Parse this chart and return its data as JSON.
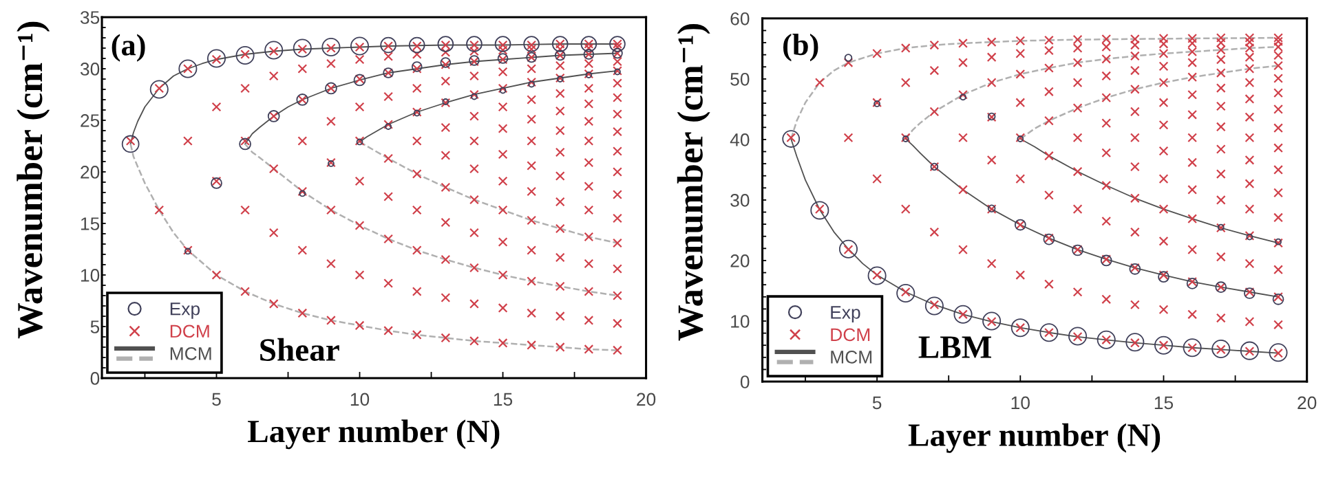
{
  "chart_data": [
    {
      "type": "scatter",
      "xlabel": "Layer number (N)",
      "ylabel": "Wavenumber (cm⁻¹)",
      "annotations": [
        "(a)",
        "Shear"
      ],
      "legend": "bottom left",
      "xlim": [
        1,
        20
      ],
      "xticks": [
        {
          "value": 2.5,
          "label": null
        },
        5,
        {
          "value": 7.5,
          "label": null
        },
        10,
        {
          "value": 12.5,
          "label": null
        },
        15,
        {
          "value": 17.5,
          "label": null
        },
        20
      ],
      "ylim": [
        0,
        35
      ],
      "yticks": [
        0,
        {
          "value": 1,
          "label": null
        },
        {
          "value": 2,
          "label": null
        },
        {
          "value": 3,
          "label": null
        },
        {
          "value": 4,
          "label": null
        },
        5,
        {
          "value": 6,
          "label": null
        },
        {
          "value": 7,
          "label": null
        },
        {
          "value": 8,
          "label": null
        },
        {
          "value": 9,
          "label": null
        },
        10,
        {
          "value": 11,
          "label": null
        },
        {
          "value": 12,
          "label": null
        },
        {
          "value": 13,
          "label": null
        },
        {
          "value": 14,
          "label": null
        },
        15,
        {
          "value": 16,
          "label": null
        },
        {
          "value": 17,
          "label": null
        },
        {
          "value": 18,
          "label": null
        },
        {
          "value": 19,
          "label": null
        },
        20,
        {
          "value": 21,
          "label": null
        },
        {
          "value": 22,
          "label": null
        },
        {
          "value": 23,
          "label": null
        },
        {
          "value": 24,
          "label": null
        },
        25,
        {
          "value": 26,
          "label": null
        },
        {
          "value": 27,
          "label": null
        },
        {
          "value": 28,
          "label": null
        },
        {
          "value": 29,
          "label": null
        },
        30,
        {
          "value": 31,
          "label": null
        },
        {
          "value": 32,
          "label": null
        },
        {
          "value": 33,
          "label": null
        },
        {
          "value": 34,
          "label": null
        },
        35
      ],
      "series": [
        {
          "name": "Exp",
          "type": "bubble",
          "marker": "circle",
          "color": "#40405a",
          "x": [
            2,
            3,
            4,
            5,
            6,
            7,
            8,
            9,
            10,
            11,
            12,
            13,
            14,
            15,
            16,
            17,
            18,
            19,
            6,
            7,
            8,
            9,
            10,
            11,
            12,
            13,
            14,
            15,
            16,
            17,
            18,
            19,
            9,
            10,
            11,
            12,
            13,
            14,
            15,
            16,
            17,
            18,
            19,
            4,
            5,
            8
          ],
          "values": [
            22.7,
            28.0,
            30.0,
            31.0,
            31.3,
            31.8,
            32.0,
            32.1,
            32.2,
            32.3,
            32.3,
            32.4,
            32.4,
            32.4,
            32.4,
            32.4,
            32.4,
            32.4,
            22.7,
            25.4,
            27.0,
            28.1,
            28.9,
            29.6,
            30.2,
            30.6,
            30.8,
            31.0,
            31.1,
            31.3,
            31.4,
            31.5,
            20.8,
            22.9,
            24.4,
            25.7,
            26.8,
            27.3,
            27.9,
            28.5,
            29.0,
            29.4,
            29.7,
            12.3,
            18.9,
            17.9
          ],
          "sizes": [
            0.9,
            1,
            1,
            1,
            1,
            1,
            1,
            1,
            1,
            0.75,
            0.75,
            0.75,
            0.75,
            0.75,
            0.75,
            0.75,
            0.75,
            0.75,
            0.4,
            0.4,
            0.4,
            0.4,
            0.4,
            0.3,
            0.3,
            0.3,
            0.3,
            0.3,
            0.3,
            0.3,
            0.3,
            0.3,
            0.1,
            0.1,
            0.1,
            0.1,
            0.1,
            0.1,
            0.1,
            0.1,
            0.1,
            0.1,
            0.1,
            0.1,
            0.35,
            0.1
          ]
        },
        {
          "name": "DCM",
          "marker": "cross",
          "color": "#d0404a",
          "x": [
            2,
            3,
            3,
            4,
            4,
            4,
            5,
            5,
            5,
            5,
            6,
            6,
            6,
            6,
            6,
            7,
            7,
            7,
            7,
            7,
            7,
            8,
            8,
            8,
            8,
            8,
            8,
            8,
            9,
            9,
            9,
            9,
            9,
            9,
            9,
            9,
            10,
            10,
            10,
            10,
            10,
            10,
            10,
            10,
            10,
            11,
            11,
            11,
            11,
            11,
            11,
            11,
            11,
            11,
            11,
            12,
            12,
            12,
            12,
            12,
            12,
            12,
            12,
            12,
            12,
            12,
            13,
            13,
            13,
            13,
            13,
            13,
            13,
            13,
            13,
            13,
            13,
            13,
            14,
            14,
            14,
            14,
            14,
            14,
            14,
            14,
            14,
            14,
            14,
            14,
            14,
            15,
            15,
            15,
            15,
            15,
            15,
            15,
            15,
            15,
            15,
            15,
            15,
            15,
            15,
            16,
            16,
            16,
            16,
            16,
            16,
            16,
            16,
            16,
            16,
            16,
            16,
            16,
            16,
            16,
            17,
            17,
            17,
            17,
            17,
            17,
            17,
            17,
            17,
            17,
            17,
            17,
            17,
            17,
            17,
            17,
            18,
            18,
            18,
            18,
            18,
            18,
            18,
            18,
            18,
            18,
            18,
            18,
            18,
            18,
            18,
            18,
            18,
            19,
            19,
            19,
            19,
            19,
            19,
            19,
            19,
            19,
            19,
            19,
            19,
            19,
            19,
            19,
            19,
            19,
            19
          ],
          "values": [
            23.0,
            16.3,
            28.1,
            12.4,
            23.0,
            30.0,
            10.0,
            19.1,
            26.3,
            30.9,
            8.4,
            16.3,
            23.0,
            28.1,
            31.4,
            7.2,
            14.1,
            20.3,
            25.4,
            29.3,
            31.7,
            6.3,
            12.4,
            18.1,
            23.0,
            27.0,
            30.0,
            31.9,
            5.6,
            11.1,
            16.3,
            20.9,
            24.9,
            28.1,
            30.5,
            32.0,
            5.1,
            10.0,
            14.8,
            19.1,
            23.0,
            26.3,
            29.0,
            30.9,
            32.1,
            4.6,
            9.2,
            13.5,
            17.6,
            21.3,
            24.6,
            27.3,
            29.6,
            31.2,
            32.2,
            4.2,
            8.4,
            12.4,
            16.3,
            19.8,
            23.0,
            25.8,
            28.1,
            30.0,
            31.4,
            32.2,
            3.9,
            7.8,
            11.5,
            15.1,
            18.5,
            21.6,
            24.3,
            26.7,
            28.8,
            30.4,
            31.6,
            32.3,
            3.6,
            7.2,
            10.7,
            14.1,
            17.3,
            20.3,
            23.0,
            25.4,
            27.5,
            29.3,
            30.7,
            31.7,
            32.3,
            3.4,
            6.8,
            10.0,
            13.2,
            16.3,
            19.1,
            21.7,
            24.2,
            26.3,
            28.1,
            29.7,
            30.9,
            31.8,
            32.3,
            3.2,
            6.3,
            9.4,
            12.4,
            15.3,
            18.1,
            20.6,
            23.0,
            25.1,
            27.0,
            28.7,
            30.0,
            31.1,
            31.9,
            32.3,
            3.0,
            6.0,
            8.9,
            11.7,
            14.5,
            17.1,
            19.6,
            21.9,
            24.0,
            25.9,
            27.6,
            29.1,
            30.3,
            31.3,
            31.9,
            32.4,
            2.8,
            5.6,
            8.4,
            11.1,
            13.7,
            16.3,
            18.6,
            20.9,
            23.0,
            24.9,
            26.6,
            28.1,
            29.5,
            30.5,
            31.4,
            32.0,
            32.4,
            2.7,
            5.3,
            8.0,
            10.6,
            13.1,
            15.5,
            17.8,
            20.0,
            22.0,
            23.9,
            25.6,
            27.2,
            28.6,
            29.8,
            30.7,
            31.5,
            32.1,
            32.4
          ]
        },
        {
          "name": "MCM",
          "type": "line",
          "line_style": "solid",
          "color": "#505050",
          "x": [
            2,
            2.1,
            2.25,
            2.5,
            3,
            3.5,
            4,
            4.5,
            5,
            6,
            7,
            8,
            9,
            10,
            11,
            13,
            15,
            17,
            19,
            null,
            6,
            6.25,
            6.5,
            7,
            7.5,
            8,
            9,
            10,
            11,
            12,
            13,
            14,
            15,
            16,
            17,
            18,
            19,
            null,
            10,
            10.25,
            10.5,
            11,
            12,
            13,
            14,
            15,
            16,
            17,
            18,
            19
          ],
          "values": [
            22.7,
            23.8,
            24.9,
            26.3,
            28.1,
            29.3,
            30.0,
            30.5,
            30.9,
            31.4,
            31.7,
            31.9,
            32.0,
            32.1,
            32.2,
            32.3,
            32.3,
            32.4,
            32.4,
            null,
            22.7,
            23.7,
            24.3,
            25.4,
            26.3,
            27.0,
            28.1,
            28.9,
            29.6,
            30.0,
            30.4,
            30.7,
            30.9,
            31.1,
            31.3,
            31.4,
            31.5,
            null,
            22.9,
            23.4,
            23.8,
            24.6,
            25.8,
            26.7,
            27.5,
            28.1,
            28.7,
            29.1,
            29.5,
            29.8
          ]
        },
        {
          "type": "line",
          "line_style": "dashed",
          "color": "#b0b0b0",
          "x": [
            2,
            2.1,
            2.25,
            2.5,
            3,
            3.5,
            4,
            5,
            6,
            7,
            8,
            9,
            10,
            11,
            12,
            13,
            14,
            15,
            16,
            17,
            18,
            19,
            null,
            6,
            6.25,
            6.5,
            7,
            8,
            9,
            10,
            11,
            12,
            13,
            14,
            15,
            16,
            17,
            18,
            19,
            null,
            10,
            10.5,
            11,
            12,
            13,
            14,
            15,
            16,
            17,
            18,
            19
          ],
          "values": [
            22.7,
            21.5,
            20.5,
            18.9,
            16.3,
            14.1,
            12.4,
            10.0,
            8.4,
            7.2,
            6.3,
            5.6,
            5.1,
            4.6,
            4.2,
            3.9,
            3.6,
            3.4,
            3.2,
            3.0,
            2.8,
            2.7,
            null,
            22.7,
            21.9,
            21.4,
            20.3,
            18.1,
            16.3,
            14.8,
            13.5,
            12.4,
            11.5,
            10.7,
            10.0,
            9.4,
            8.9,
            8.4,
            8.0,
            null,
            22.9,
            22.1,
            21.3,
            19.8,
            18.5,
            17.3,
            16.3,
            15.3,
            14.5,
            13.7,
            13.1
          ]
        }
      ]
    },
    {
      "type": "scatter",
      "xlabel": "Layer number (N)",
      "ylabel": "Wavenumber (cm⁻¹)",
      "annotations": [
        "(b)",
        "LBM"
      ],
      "legend": "bottom left",
      "xlim": [
        1,
        20
      ],
      "xticks": [
        {
          "value": 2.5,
          "label": null
        },
        5,
        {
          "value": 7.5,
          "label": null
        },
        10,
        {
          "value": 12.5,
          "label": null
        },
        15,
        {
          "value": 17.5,
          "label": null
        },
        20
      ],
      "ylim": [
        0,
        60
      ],
      "yticks": [
        0,
        {
          "value": 2,
          "label": null
        },
        {
          "value": 4,
          "label": null
        },
        {
          "value": 6,
          "label": null
        },
        {
          "value": 8,
          "label": null
        },
        10,
        {
          "value": 12,
          "label": null
        },
        {
          "value": 14,
          "label": null
        },
        {
          "value": 16,
          "label": null
        },
        {
          "value": 18,
          "label": null
        },
        20,
        {
          "value": 22,
          "label": null
        },
        {
          "value": 24,
          "label": null
        },
        {
          "value": 26,
          "label": null
        },
        {
          "value": 28,
          "label": null
        },
        30,
        {
          "value": 32,
          "label": null
        },
        {
          "value": 34,
          "label": null
        },
        {
          "value": 36,
          "label": null
        },
        {
          "value": 38,
          "label": null
        },
        40,
        {
          "value": 42,
          "label": null
        },
        {
          "value": 44,
          "label": null
        },
        {
          "value": 46,
          "label": null
        },
        {
          "value": 48,
          "label": null
        },
        50,
        {
          "value": 52,
          "label": null
        },
        {
          "value": 54,
          "label": null
        },
        {
          "value": 56,
          "label": null
        },
        {
          "value": 58,
          "label": null
        },
        60
      ],
      "series": [
        {
          "name": "Exp",
          "type": "bubble",
          "marker": "circle",
          "color": "#40405a",
          "x": [
            2,
            3,
            4,
            5,
            6,
            7,
            8,
            9,
            10,
            11,
            12,
            13,
            14,
            15,
            16,
            17,
            18,
            19,
            6,
            7,
            9,
            10,
            11,
            12,
            13,
            14,
            15,
            16,
            17,
            18,
            19,
            10,
            17,
            18,
            19,
            4,
            5,
            8,
            9
          ],
          "values": [
            40.1,
            28.3,
            21.9,
            17.5,
            14.6,
            12.5,
            11.1,
            10.0,
            8.9,
            8.1,
            7.5,
            6.9,
            6.5,
            6.0,
            5.6,
            5.4,
            5.1,
            4.8,
            40.1,
            35.5,
            28.6,
            25.9,
            23.5,
            21.7,
            20.0,
            18.6,
            17.3,
            16.2,
            15.6,
            14.6,
            13.6,
            40.1,
            25.5,
            23.9,
            23.1,
            53.5,
            45.9,
            47.0,
            43.8
          ],
          "sizes": [
            0.9,
            1,
            1,
            1,
            1,
            1,
            1,
            1,
            1,
            1,
            1,
            1,
            1,
            1,
            1,
            1,
            1,
            1,
            0.1,
            0.15,
            0.15,
            0.35,
            0.35,
            0.35,
            0.35,
            0.35,
            0.35,
            0.35,
            0.35,
            0.35,
            0.35,
            0.1,
            0.1,
            0.1,
            0.1,
            0.15,
            0.1,
            0.1,
            0.15
          ]
        },
        {
          "name": "DCM",
          "marker": "cross",
          "color": "#d0404a",
          "x": [
            2,
            3,
            3,
            4,
            4,
            4,
            5,
            5,
            5,
            5,
            6,
            6,
            6,
            6,
            6,
            7,
            7,
            7,
            7,
            7,
            7,
            8,
            8,
            8,
            8,
            8,
            8,
            8,
            9,
            9,
            9,
            9,
            9,
            9,
            9,
            9,
            10,
            10,
            10,
            10,
            10,
            10,
            10,
            10,
            10,
            11,
            11,
            11,
            11,
            11,
            11,
            11,
            11,
            11,
            11,
            12,
            12,
            12,
            12,
            12,
            12,
            12,
            12,
            12,
            12,
            12,
            13,
            13,
            13,
            13,
            13,
            13,
            13,
            13,
            13,
            13,
            13,
            13,
            14,
            14,
            14,
            14,
            14,
            14,
            14,
            14,
            14,
            14,
            14,
            14,
            14,
            15,
            15,
            15,
            15,
            15,
            15,
            15,
            15,
            15,
            15,
            15,
            15,
            15,
            15,
            16,
            16,
            16,
            16,
            16,
            16,
            16,
            16,
            16,
            16,
            16,
            16,
            16,
            16,
            16,
            17,
            17,
            17,
            17,
            17,
            17,
            17,
            17,
            17,
            17,
            17,
            17,
            17,
            17,
            17,
            17,
            18,
            18,
            18,
            18,
            18,
            18,
            18,
            18,
            18,
            18,
            18,
            18,
            18,
            18,
            18,
            18,
            18,
            19,
            19,
            19,
            19,
            19,
            19,
            19,
            19,
            19,
            19,
            19,
            19,
            19,
            19,
            19,
            19,
            19,
            19
          ],
          "values": [
            40.3,
            28.5,
            49.4,
            21.8,
            40.3,
            52.7,
            17.6,
            33.5,
            46.1,
            54.2,
            14.8,
            28.5,
            40.3,
            49.4,
            55.1,
            12.7,
            24.7,
            35.5,
            44.6,
            51.4,
            55.6,
            11.1,
            21.8,
            31.7,
            40.3,
            47.4,
            52.7,
            55.9,
            9.9,
            19.5,
            28.5,
            36.6,
            43.7,
            49.4,
            53.6,
            56.1,
            8.9,
            17.6,
            25.9,
            33.5,
            40.3,
            46.1,
            50.8,
            54.2,
            56.3,
            8.1,
            16.1,
            23.7,
            30.8,
            37.3,
            43.1,
            47.9,
            51.8,
            54.7,
            56.4,
            7.4,
            14.8,
            21.8,
            28.5,
            34.7,
            40.3,
            45.2,
            49.4,
            52.7,
            55.1,
            56.5,
            6.9,
            13.6,
            20.2,
            26.5,
            32.4,
            37.8,
            42.7,
            46.9,
            50.5,
            53.3,
            55.3,
            56.6,
            6.4,
            12.7,
            18.8,
            24.7,
            30.3,
            35.5,
            40.3,
            44.6,
            48.3,
            51.4,
            53.8,
            55.6,
            56.6,
            6.0,
            11.9,
            17.6,
            23.2,
            28.5,
            33.5,
            38.1,
            42.4,
            46.1,
            49.4,
            52.1,
            54.2,
            55.8,
            56.7,
            5.6,
            11.1,
            16.5,
            21.8,
            26.9,
            31.7,
            36.2,
            40.3,
            44.1,
            47.4,
            50.3,
            52.7,
            54.5,
            55.9,
            56.7,
            5.3,
            10.5,
            15.6,
            20.6,
            25.4,
            30.0,
            34.3,
            38.4,
            42.1,
            45.5,
            48.5,
            51.0,
            53.2,
            54.8,
            56.0,
            56.8,
            5.0,
            9.9,
            14.8,
            19.5,
            24.1,
            28.5,
            32.7,
            36.6,
            40.3,
            43.7,
            46.7,
            49.4,
            51.7,
            53.6,
            55.1,
            56.1,
            56.8,
            4.7,
            9.4,
            14.0,
            18.5,
            22.9,
            27.1,
            31.2,
            35.0,
            38.6,
            41.9,
            45.0,
            47.7,
            50.1,
            52.2,
            53.9,
            55.3,
            56.2,
            56.8
          ]
        },
        {
          "name": "MCM",
          "type": "line",
          "line_style": "solid",
          "color": "#505050",
          "x": [
            2,
            2.2,
            2.5,
            3,
            3.5,
            4,
            4.5,
            5,
            6,
            7,
            8,
            9,
            10,
            11,
            12,
            13,
            14,
            15,
            16,
            17,
            18,
            19,
            null,
            6,
            6.25,
            6.5,
            7,
            8,
            9,
            10,
            11,
            12,
            13,
            14,
            15,
            16,
            17,
            18,
            19,
            null,
            10,
            10.5,
            11,
            12,
            13,
            14,
            15,
            16,
            17,
            18,
            19
          ],
          "values": [
            40.1,
            37.2,
            33.3,
            28.4,
            24.7,
            21.9,
            19.5,
            17.6,
            14.8,
            12.7,
            11.1,
            9.9,
            8.9,
            8.1,
            7.4,
            6.9,
            6.4,
            6.0,
            5.6,
            5.3,
            5.0,
            4.7,
            null,
            40.1,
            39.0,
            37.8,
            35.5,
            31.7,
            28.5,
            25.9,
            23.7,
            21.8,
            20.2,
            18.8,
            17.6,
            16.5,
            15.6,
            14.8,
            14.0,
            null,
            40.1,
            38.8,
            37.3,
            34.7,
            32.4,
            30.3,
            28.5,
            26.9,
            25.4,
            24.1,
            22.9
          ]
        },
        {
          "type": "line",
          "line_style": "dashed",
          "color": "#b0b0b0",
          "x": [
            2,
            2.2,
            2.5,
            3,
            3.5,
            4,
            5,
            6,
            7,
            8,
            9,
            10,
            12,
            14,
            16,
            19,
            null,
            6,
            6.25,
            6.5,
            7,
            8,
            9,
            10,
            11,
            12,
            13,
            14,
            15,
            16,
            17,
            18,
            19,
            null,
            10,
            10.5,
            11,
            12,
            13,
            14,
            15,
            16,
            17,
            18,
            19
          ],
          "values": [
            40.1,
            43.1,
            46.1,
            49.4,
            51.4,
            52.7,
            54.2,
            55.1,
            55.6,
            55.9,
            56.1,
            56.3,
            56.5,
            56.6,
            56.7,
            56.8,
            null,
            40.1,
            41.6,
            42.7,
            44.6,
            47.4,
            49.4,
            50.8,
            51.8,
            52.7,
            53.3,
            53.8,
            54.2,
            54.5,
            54.8,
            55.1,
            55.3,
            null,
            40.1,
            41.8,
            43.1,
            45.2,
            46.9,
            48.3,
            49.4,
            50.3,
            51.0,
            51.7,
            52.2
          ]
        }
      ]
    }
  ]
}
